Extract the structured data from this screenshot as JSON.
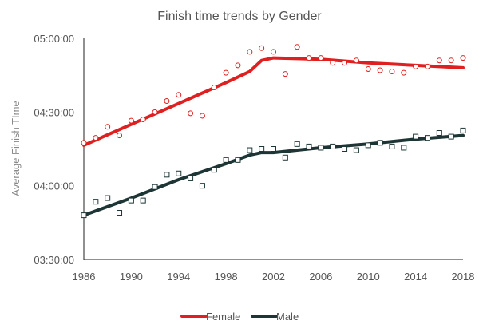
{
  "chart_data": {
    "type": "line",
    "title": "Finish time trends by Gender",
    "xlabel": "",
    "ylabel": "Average Finish TIme",
    "xlim": [
      1986,
      2018
    ],
    "ylim": [
      "03:30:00",
      "05:00:00"
    ],
    "x_ticks": [
      "1986",
      "1990",
      "1994",
      "1998",
      "2002",
      "2006",
      "2010",
      "2014",
      "2018"
    ],
    "y_ticks": [
      "03:30:00",
      "04:00:00",
      "04:30:00",
      "05:00:00"
    ],
    "grid": false,
    "legend_position": "bottom",
    "series": [
      {
        "name": "Female",
        "color": "#e02020",
        "marker": "circle",
        "points": [
          [
            "1986",
            "04:17:30"
          ],
          [
            "1987",
            "04:19:30"
          ],
          [
            "1988",
            "04:24:00"
          ],
          [
            "1989",
            "04:20:30"
          ],
          [
            "1990",
            "04:26:30"
          ],
          [
            "1991",
            "04:27:00"
          ],
          [
            "1992",
            "04:30:00"
          ],
          [
            "1993",
            "04:34:30"
          ],
          [
            "1994",
            "04:37:00"
          ],
          [
            "1995",
            "04:29:30"
          ],
          [
            "1996",
            "04:28:30"
          ],
          [
            "1997",
            "04:40:00"
          ],
          [
            "1998",
            "04:46:00"
          ],
          [
            "1999",
            "04:49:00"
          ],
          [
            "2000",
            "04:54:30"
          ],
          [
            "2001",
            "04:56:00"
          ],
          [
            "2002",
            "04:54:30"
          ],
          [
            "2003",
            "04:45:30"
          ],
          [
            "2004",
            "04:56:30"
          ],
          [
            "2005",
            "04:52:00"
          ],
          [
            "2006",
            "04:52:00"
          ],
          [
            "2007",
            "04:50:00"
          ],
          [
            "2008",
            "04:50:00"
          ],
          [
            "2009",
            "04:51:00"
          ],
          [
            "2010",
            "04:47:30"
          ],
          [
            "2011",
            "04:47:00"
          ],
          [
            "2012",
            "04:46:30"
          ],
          [
            "2013",
            "04:46:00"
          ],
          [
            "2014",
            "04:48:30"
          ],
          [
            "2015",
            "04:48:30"
          ],
          [
            "2016",
            "04:51:00"
          ],
          [
            "2017",
            "04:51:00"
          ],
          [
            "2018",
            "04:52:00"
          ]
        ],
        "trend": [
          [
            "1986",
            "04:16:30"
          ],
          [
            "1990",
            "04:25:00"
          ],
          [
            "1994",
            "04:33:30"
          ],
          [
            "1998",
            "04:42:00"
          ],
          [
            "2000",
            "04:46:30"
          ],
          [
            "2001",
            "04:51:00"
          ],
          [
            "2002",
            "04:52:00"
          ],
          [
            "2006",
            "04:51:30"
          ],
          [
            "2010",
            "04:50:00"
          ],
          [
            "2014",
            "04:49:00"
          ],
          [
            "2018",
            "04:48:00"
          ]
        ]
      },
      {
        "name": "Male",
        "color": "#1e3535",
        "marker": "square",
        "points": [
          [
            "1986",
            "03:48:00"
          ],
          [
            "1987",
            "03:53:30"
          ],
          [
            "1988",
            "03:55:00"
          ],
          [
            "1989",
            "03:49:00"
          ],
          [
            "1990",
            "03:54:00"
          ],
          [
            "1991",
            "03:54:00"
          ],
          [
            "1992",
            "03:59:30"
          ],
          [
            "1993",
            "04:04:30"
          ],
          [
            "1994",
            "04:05:00"
          ],
          [
            "1995",
            "04:03:00"
          ],
          [
            "1996",
            "04:00:00"
          ],
          [
            "1997",
            "04:06:30"
          ],
          [
            "1998",
            "04:10:30"
          ],
          [
            "1999",
            "04:10:30"
          ],
          [
            "2000",
            "04:14:30"
          ],
          [
            "2001",
            "04:15:00"
          ],
          [
            "2002",
            "04:15:00"
          ],
          [
            "2003",
            "04:11:30"
          ],
          [
            "2004",
            "04:17:00"
          ],
          [
            "2005",
            "04:16:00"
          ],
          [
            "2006",
            "04:15:30"
          ],
          [
            "2007",
            "04:16:00"
          ],
          [
            "2008",
            "04:15:00"
          ],
          [
            "2009",
            "04:14:30"
          ],
          [
            "2010",
            "04:16:30"
          ],
          [
            "2011",
            "04:17:30"
          ],
          [
            "2012",
            "04:16:00"
          ],
          [
            "2013",
            "04:15:30"
          ],
          [
            "2014",
            "04:20:00"
          ],
          [
            "2015",
            "04:19:30"
          ],
          [
            "2016",
            "04:21:30"
          ],
          [
            "2017",
            "04:20:00"
          ],
          [
            "2018",
            "04:22:30"
          ]
        ],
        "trend": [
          [
            "1986",
            "03:48:00"
          ],
          [
            "1990",
            "03:55:00"
          ],
          [
            "1994",
            "04:02:30"
          ],
          [
            "1998",
            "04:09:00"
          ],
          [
            "2000",
            "04:12:30"
          ],
          [
            "2001",
            "04:13:30"
          ],
          [
            "2002",
            "04:13:30"
          ],
          [
            "2006",
            "04:15:30"
          ],
          [
            "2010",
            "04:17:00"
          ],
          [
            "2014",
            "04:19:00"
          ],
          [
            "2018",
            "04:20:30"
          ]
        ]
      }
    ]
  }
}
